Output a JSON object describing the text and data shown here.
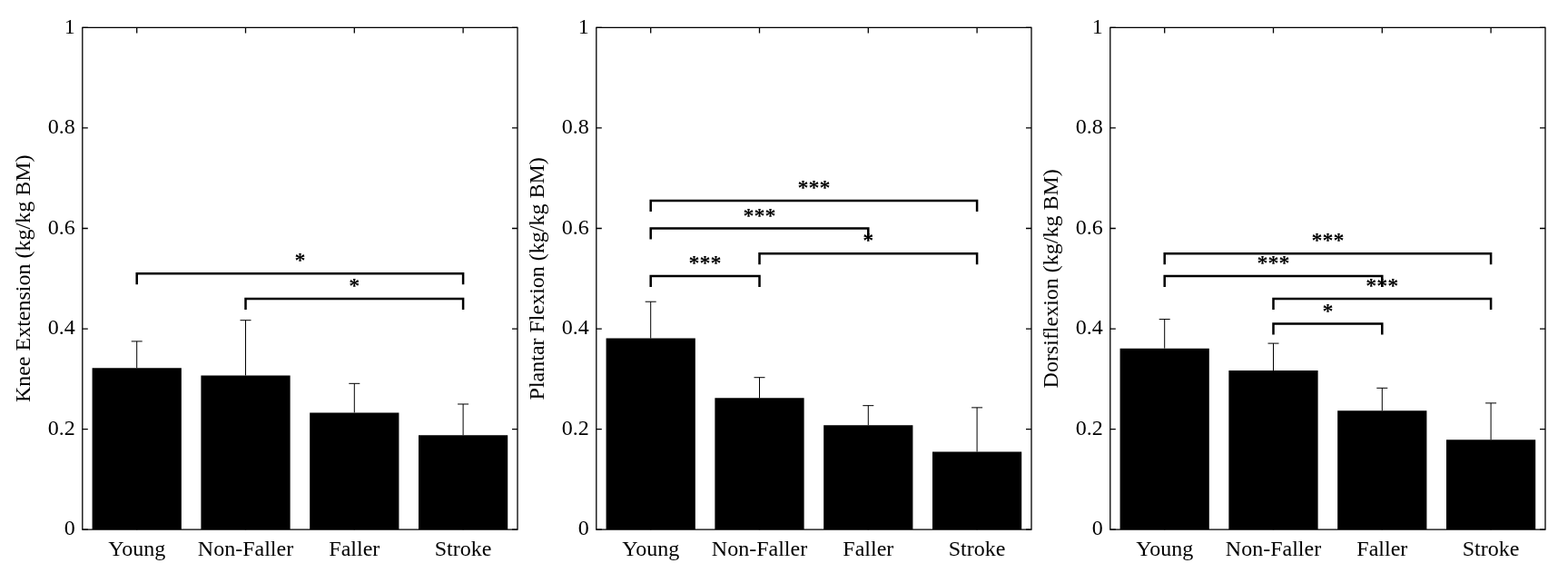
{
  "chart_data": [
    {
      "type": "bar",
      "ylabel": "Knee Extension (kg/kg BM)",
      "categories": [
        "Young",
        "Non-Faller",
        "Faller",
        "Stroke"
      ],
      "color": "#000000",
      "values": [
        0.322,
        0.307,
        0.233,
        0.188
      ],
      "errors": [
        [
          0.322,
          0.375
        ],
        [
          0.307,
          0.417
        ],
        [
          0.233,
          0.291
        ],
        [
          0.188,
          0.25
        ]
      ],
      "ylim": [
        0,
        1
      ],
      "yticks": [
        0,
        0.2,
        0.4,
        0.6,
        0.8,
        1
      ],
      "annotations": [
        "*",
        "*"
      ]
    },
    {
      "type": "bar",
      "ylabel": "Plantar Flexion (kg/kg BM)",
      "categories": [
        "Young",
        "Non-Faller",
        "Faller",
        "Stroke"
      ],
      "color": "#000000",
      "values": [
        0.381,
        0.262,
        0.208,
        0.155
      ],
      "errors": [
        [
          0.381,
          0.454
        ],
        [
          0.262,
          0.303
        ],
        [
          0.208,
          0.247
        ],
        [
          0.155,
          0.243
        ]
      ],
      "ylim": [
        0,
        1
      ],
      "yticks": [
        0,
        0.2,
        0.4,
        0.6,
        0.8,
        1
      ],
      "annotations": [
        "***",
        "***",
        "*",
        "***"
      ]
    },
    {
      "type": "bar",
      "ylabel": "Dorsiflexion (kg/kg BM)",
      "categories": [
        "Young",
        "Non-Faller",
        "Faller",
        "Stroke"
      ],
      "color": "#000000",
      "values": [
        0.361,
        0.317,
        0.237,
        0.179
      ],
      "errors": [
        [
          0.361,
          0.419
        ],
        [
          0.317,
          0.371
        ],
        [
          0.237,
          0.282
        ],
        [
          0.179,
          0.252
        ]
      ],
      "ylim": [
        0,
        1
      ],
      "yticks": [
        0,
        0.2,
        0.4,
        0.6,
        0.8,
        1
      ],
      "annotations": [
        "***",
        "***",
        "***",
        "*"
      ]
    }
  ]
}
